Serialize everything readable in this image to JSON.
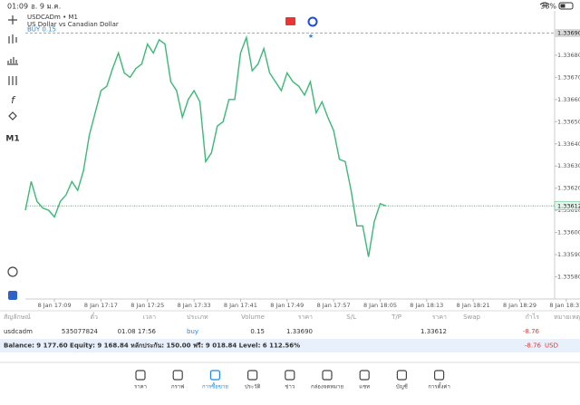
{
  "status_bar": {
    "time": "01:09",
    "date": "อ. 9 ม.ค.",
    "battery": "36%"
  },
  "chart_data": {
    "type": "line",
    "symbol": "USDCADm • M1",
    "description": "US Dollar vs Canadian Dollar",
    "timeframe": "M1",
    "x": [
      4,
      5,
      6,
      7,
      8,
      9,
      10,
      11,
      12,
      13,
      14,
      15,
      16,
      17,
      18,
      19,
      20,
      21,
      22,
      23,
      24,
      25,
      26,
      27,
      28,
      29,
      30,
      31,
      32,
      33,
      34,
      35,
      36,
      37,
      38,
      39,
      40,
      41,
      42,
      43,
      44,
      45,
      46,
      47,
      48,
      49,
      50,
      51,
      52,
      53,
      54,
      55,
      56,
      57,
      58,
      59,
      60,
      61,
      62,
      63,
      64,
      65,
      66
    ],
    "values": [
      1.3361,
      1.33623,
      1.33614,
      1.33611,
      1.3361,
      1.33607,
      1.33614,
      1.33617,
      1.33623,
      1.33619,
      1.33628,
      1.33644,
      1.33654,
      1.33664,
      1.33666,
      1.33674,
      1.33681,
      1.33672,
      1.3367,
      1.33674,
      1.33676,
      1.33685,
      1.33681,
      1.33687,
      1.33685,
      1.33668,
      1.33664,
      1.33652,
      1.3366,
      1.33664,
      1.33659,
      1.33632,
      1.33636,
      1.33648,
      1.3365,
      1.3366,
      1.3366,
      1.33681,
      1.33688,
      1.33673,
      1.33676,
      1.33683,
      1.33672,
      1.33668,
      1.33664,
      1.33672,
      1.33668,
      1.33666,
      1.33662,
      1.33668,
      1.33654,
      1.33659,
      1.33652,
      1.33646,
      1.33633,
      1.33632,
      1.33619,
      1.33603,
      1.33603,
      1.33589,
      1.33605,
      1.33613,
      1.33612
    ],
    "color": "#3cb878",
    "xlim": [
      4,
      95
    ],
    "xticks": [
      {
        "value": 9,
        "label": "8 Jan 17:09"
      },
      {
        "value": 17,
        "label": "8 Jan 17:17"
      },
      {
        "value": 25,
        "label": "8 Jan 17:25"
      },
      {
        "value": 33,
        "label": "8 Jan 17:33"
      },
      {
        "value": 41,
        "label": "8 Jan 17:41"
      },
      {
        "value": 49,
        "label": "8 Jan 17:49"
      },
      {
        "value": 57,
        "label": "8 Jan 17:57"
      },
      {
        "value": 65,
        "label": "8 Jan 18:05"
      },
      {
        "value": 73,
        "label": "8 Jan 18:13"
      },
      {
        "value": 81,
        "label": "8 Jan 18:21"
      },
      {
        "value": 89,
        "label": "8 Jan 18:29"
      },
      {
        "value": 97,
        "label": "8 Jan 18:37"
      }
    ],
    "ylim": [
      1.3357,
      1.337
    ],
    "yticks": [
      {
        "value": 1.3358,
        "label": "1.33580"
      },
      {
        "value": 1.3359,
        "label": "1.33590"
      },
      {
        "value": 1.336,
        "label": "1.33600"
      },
      {
        "value": 1.3361,
        "label": "1.33610"
      },
      {
        "value": 1.3362,
        "label": "1.33620"
      },
      {
        "value": 1.3363,
        "label": "1.33630"
      },
      {
        "value": 1.3364,
        "label": "1.33640"
      },
      {
        "value": 1.3365,
        "label": "1.33650"
      },
      {
        "value": 1.3366,
        "label": "1.33660"
      },
      {
        "value": 1.3367,
        "label": "1.33670"
      },
      {
        "value": 1.3368,
        "label": "1.33680"
      }
    ],
    "grid": false,
    "order_line": {
      "label": "BUY 0.15",
      "price": 1.3369,
      "price_label": "1.33690",
      "color": "#1e88e5"
    },
    "bid_line": {
      "price": 1.33612,
      "price_label": "1.33612",
      "color": "#3cb878"
    }
  },
  "table": {
    "headers": [
      "สัญลักษณ์",
      "ตั๋ว",
      "เวลา",
      "ประเภท",
      "Volume",
      "ราคา",
      "S/L",
      "T/P",
      "ราคา",
      "Swap",
      "กำไร",
      "หมายเหตุ"
    ],
    "order": {
      "symbol": "usdcadm",
      "ticket": "535077824",
      "time": "01.08 17:56",
      "type": "buy",
      "volume": "0.15",
      "open_price": "1.33690",
      "price": "1.33612",
      "profit": "-8.76"
    }
  },
  "balance": {
    "text": "Balance: 9 177.60 Equity: 9 168.84 หลักประกัน: 150.00 ฟรี: 9 018.84 Level: 6 112.56%",
    "profit": "-8.76",
    "currency": "USD"
  },
  "nav": [
    "ราคา",
    "กราฟ",
    "การซื้อขาย",
    "ประวัติ",
    "ข่าว",
    "กล่องจดหมาย",
    "แชท",
    "บัญชี",
    "การตั้งค่า"
  ]
}
